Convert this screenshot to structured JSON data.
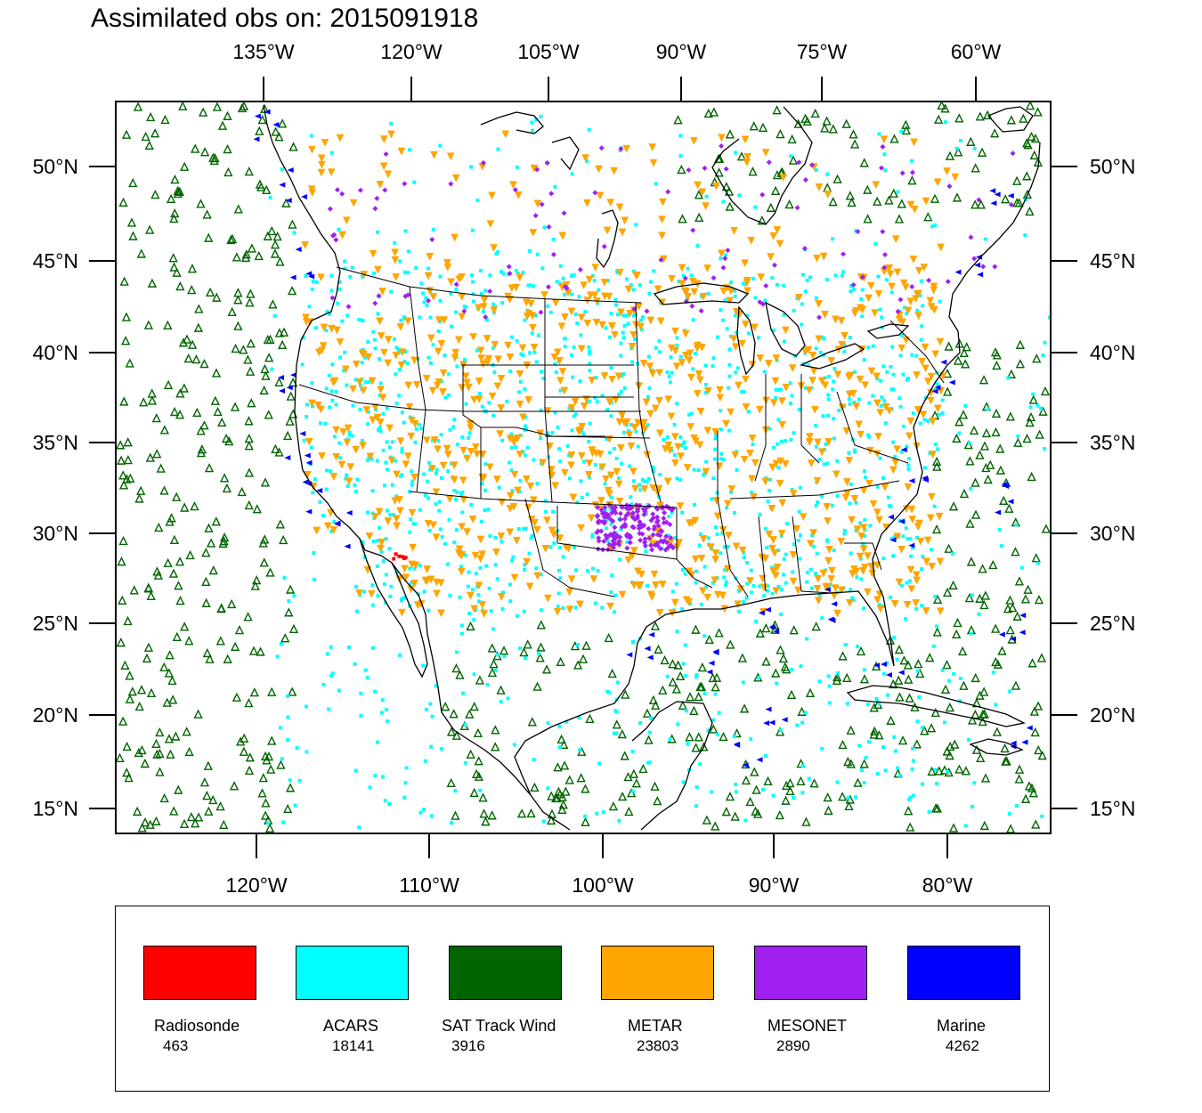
{
  "title": "Assimilated obs on: 2015091918",
  "top_axis_labels": [
    "135°W",
    "120°W",
    "105°W",
    "90°W",
    "75°W",
    "60°W"
  ],
  "bottom_axis_labels": [
    "120°W",
    "110°W",
    "100°W",
    "90°W",
    "80°W"
  ],
  "left_axis_labels": [
    "50°N",
    "45°N",
    "40°N",
    "35°N",
    "30°N",
    "25°N",
    "20°N",
    "15°N"
  ],
  "right_axis_labels": [
    "50°N",
    "45°N",
    "40°N",
    "35°N",
    "30°N",
    "25°N",
    "20°N",
    "15°N"
  ],
  "legend": [
    {
      "name": "Radiosonde",
      "count": "463",
      "color": "#ff0000"
    },
    {
      "name": "ACARS",
      "count": "18141",
      "color": "#00ffff"
    },
    {
      "name": "SAT Track Wind",
      "count": "3916",
      "color": "#006400"
    },
    {
      "name": "METAR",
      "count": "23803",
      "color": "#ffa500"
    },
    {
      "name": "MESONET",
      "count": "2890",
      "color": "#a020f0"
    },
    {
      "name": "Marine",
      "count": "4262",
      "color": "#0000ff"
    }
  ]
}
